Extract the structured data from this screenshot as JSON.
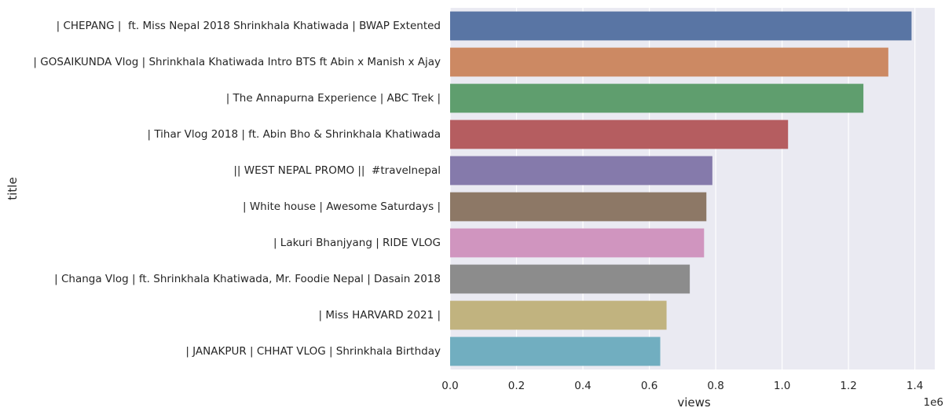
{
  "chart_data": {
    "type": "bar",
    "orientation": "horizontal",
    "ylabel": "title",
    "xlabel": "views",
    "x_offset_label": "1e6",
    "xlim": [
      0,
      1.46
    ],
    "xticks": [
      0.0,
      0.2,
      0.4,
      0.6,
      0.8,
      1.0,
      1.2,
      1.4
    ],
    "xtick_labels": [
      "0.0",
      "0.2",
      "0.4",
      "0.6",
      "0.8",
      "1.0",
      "1.2",
      "1.4"
    ],
    "grid": true,
    "background": "#eaeaf2",
    "categories": [
      "| CHEPANG |  ft. Miss Nepal 2018 Shrinkhala Khatiwada | BWAP Extented",
      "| GOSAIKUNDA Vlog | Shrinkhala Khatiwada Intro BTS ft Abin x Manish x Ajay",
      "| The Annapurna Experience | ABC Trek |",
      "| Tihar Vlog 2018 | ft. Abin Bho & Shrinkhala Khatiwada",
      "|| WEST NEPAL PROMO ||  #travelnepal",
      "| White house | Awesome Saturdays |",
      "| Lakuri Bhanjyang | RIDE VLOG",
      "| Changa Vlog | ft. Shrinkhala Khatiwada, Mr. Foodie Nepal | Dasain 2018",
      "| Miss HARVARD 2021 |",
      "| JANAKPUR | CHHAT VLOG | Shrinkhala Birthday"
    ],
    "values": [
      1.39,
      1.32,
      1.245,
      1.018,
      0.79,
      0.772,
      0.765,
      0.722,
      0.652,
      0.633
    ],
    "colors": [
      "#5975a4",
      "#cc8963",
      "#5f9e6e",
      "#b55d60",
      "#857aab",
      "#8d7866",
      "#d095bf",
      "#8c8c8c",
      "#c1b37f",
      "#71aec0"
    ]
  }
}
